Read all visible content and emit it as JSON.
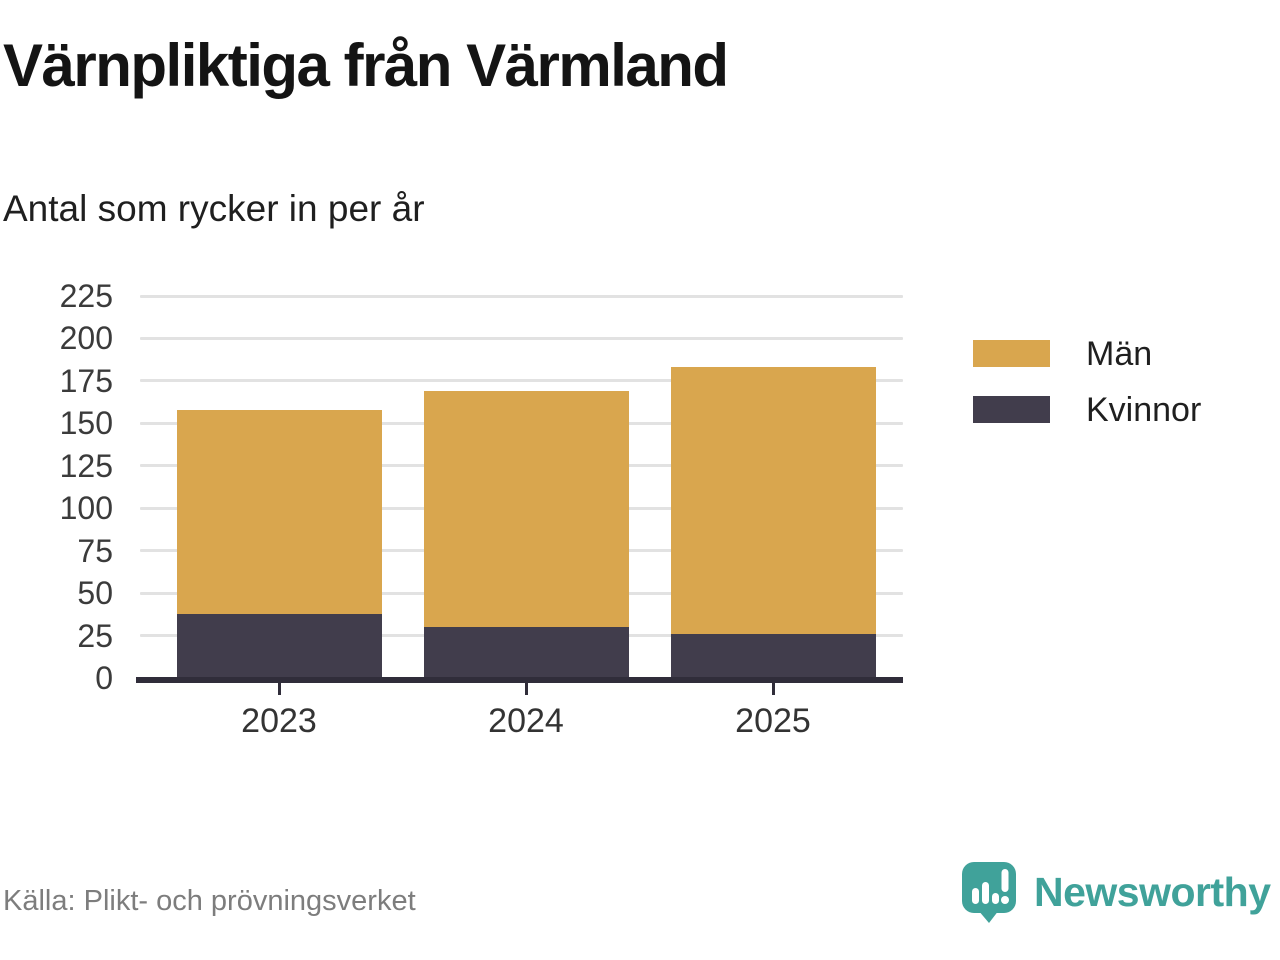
{
  "header": {
    "title": "Värnpliktiga från Värmland",
    "subtitle": "Antal som rycker in per år"
  },
  "chart_data": {
    "type": "bar",
    "stacked": true,
    "title": "Värnpliktiga från Värmland",
    "subtitle": "Antal som rycker in per år",
    "categories": [
      "2023",
      "2024",
      "2025"
    ],
    "series": [
      {
        "name": "Män",
        "color": "#D9A64E",
        "values": [
          120,
          139,
          157
        ]
      },
      {
        "name": "Kvinnor",
        "color": "#413D4C",
        "values": [
          38,
          30,
          26
        ]
      }
    ],
    "stack_order_bottom_to_top": [
      "Kvinnor",
      "Män"
    ],
    "stack_totals": [
      158,
      169,
      183
    ],
    "xlabel": "",
    "ylabel": "",
    "ylim": [
      0,
      225
    ],
    "yticks": [
      0,
      25,
      50,
      75,
      100,
      125,
      150,
      175,
      200,
      225
    ],
    "grid": true,
    "legend_position": "right"
  },
  "footer": {
    "source": "Källa: Plikt- och prövningsverket",
    "brand": "Newsworthy"
  },
  "icons": {
    "brand_icon": "newsworthy-speech-bubble-bar-chart-icon"
  },
  "colors": {
    "bar_men": "#D9A64E",
    "bar_women": "#413D4C",
    "axis": "#302D3A",
    "gridline": "#E2E2E2",
    "tick_label": "#3b3b3b",
    "title_text": "#141414",
    "source_text": "#7d7d7d",
    "brand_teal": "#40A29A"
  }
}
